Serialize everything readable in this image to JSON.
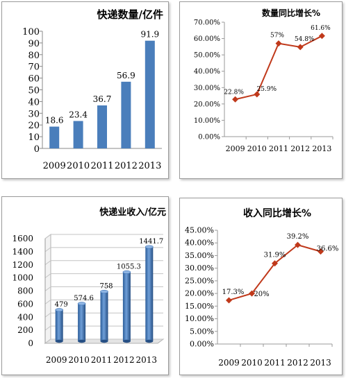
{
  "chart_data": [
    {
      "type": "bar",
      "title": "快递数量/亿件",
      "categories": [
        "2009",
        "2010",
        "2011",
        "2012",
        "2013"
      ],
      "values": [
        18.6,
        23.4,
        36.7,
        56.9,
        91.9
      ],
      "value_labels": [
        "18.6",
        "23.4",
        "36.7",
        "56.9",
        "91.9"
      ],
      "yticks": [
        "0",
        "10",
        "20",
        "30",
        "40",
        "50",
        "60",
        "70",
        "80",
        "90",
        "100"
      ],
      "ylim": [
        0,
        100
      ],
      "grid": false,
      "color": "#4a7ebb"
    },
    {
      "type": "line",
      "title": "数量同比增长%",
      "categories": [
        "2009",
        "2010",
        "2011",
        "2012",
        "2013"
      ],
      "values": [
        22.8,
        25.9,
        57,
        54.8,
        61.6
      ],
      "value_labels": [
        "22.8%",
        "25.9%",
        "57%",
        "54.8%",
        "61.6%"
      ],
      "yticks": [
        "0.00%",
        "10.00%",
        "20.00%",
        "30.00%",
        "40.00%",
        "50.00%",
        "60.00%",
        "70.00%"
      ],
      "ylim": [
        0,
        70
      ],
      "grid": false,
      "color": "#c0391b"
    },
    {
      "type": "bar",
      "title": "快递业收入/亿元",
      "categories": [
        "2009",
        "2010",
        "2011",
        "2012",
        "2013"
      ],
      "values": [
        479,
        574.6,
        758,
        1055.3,
        1441.7
      ],
      "value_labels": [
        "479",
        "574.6",
        "758",
        "1055.3",
        "1441.7"
      ],
      "yticks": [
        "0",
        "200",
        "400",
        "600",
        "800",
        "1000",
        "1200",
        "1400",
        "1600"
      ],
      "ylim": [
        0,
        1600
      ],
      "grid": true,
      "style": "3d-cylinder",
      "color": "#3e74b6"
    },
    {
      "type": "line",
      "title": "收入同比增长%",
      "categories": [
        "2009",
        "2010",
        "2011",
        "2012",
        "2013"
      ],
      "values": [
        17.3,
        20,
        31.9,
        39.2,
        36.6
      ],
      "value_labels": [
        "17.3%",
        "20%",
        "31.9%",
        "39.2%",
        "36.6%"
      ],
      "yticks": [
        "0.00%",
        "5.00%",
        "10.00%",
        "15.00%",
        "20.00%",
        "25.00%",
        "30.00%",
        "35.00%",
        "40.00%",
        "45.00%"
      ],
      "ylim": [
        0,
        45
      ],
      "grid": false,
      "color": "#c0391b"
    }
  ]
}
